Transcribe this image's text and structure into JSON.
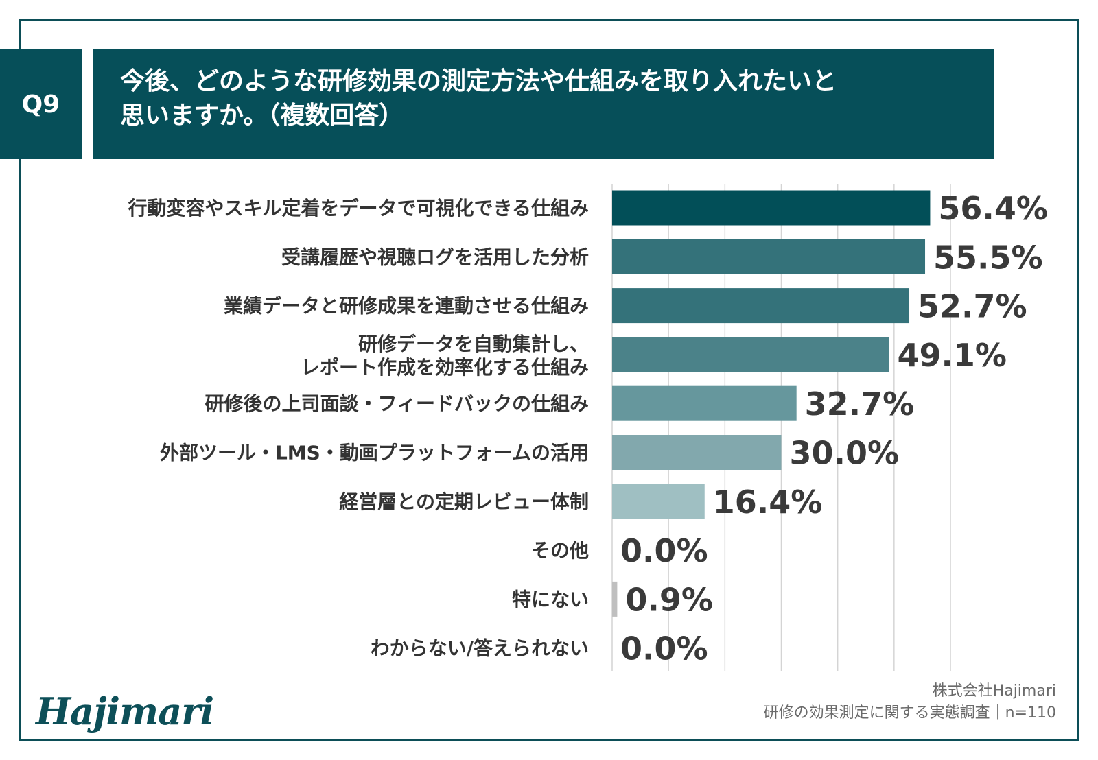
{
  "question": {
    "badge": "Q9",
    "title_line1": "今後、どのような研修効果の測定方法や仕組みを取り入れたいと",
    "title_line2": "思いますか。（複数回答）"
  },
  "chart_data": {
    "type": "bar",
    "orientation": "horizontal",
    "categories": [
      [
        "行動変容やスキル定着をデータで可視化できる仕組み"
      ],
      [
        "受講履歴や視聴ログを活用した分析"
      ],
      [
        "業績データと研修成果を連動させる仕組み"
      ],
      [
        "研修データを自動集計し、",
        "レポート作成を効率化する仕組み"
      ],
      [
        "研修後の上司面談・フィードバックの仕組み"
      ],
      [
        "外部ツール・LMS・動画プラットフォームの活用"
      ],
      [
        "経営層との定期レビュー体制"
      ],
      [
        "その他"
      ],
      [
        "特にない"
      ],
      [
        "わからない/答えられない"
      ]
    ],
    "values": [
      56.4,
      55.5,
      52.7,
      49.1,
      32.7,
      30.0,
      16.4,
      0.0,
      0.9,
      0.0
    ],
    "value_labels": [
      "56.4%",
      "55.5%",
      "52.7%",
      "49.1%",
      "32.7%",
      "30.0%",
      "16.4%",
      "0.0%",
      "0.9%",
      "0.0%"
    ],
    "bar_colors": [
      "#024f58",
      "#34727a",
      "#34727a",
      "#4b8289",
      "#66979d",
      "#82a8ad",
      "#9fbfc2",
      "#bfbfbf",
      "#bfbfbf",
      "#bfbfbf"
    ],
    "xlim": [
      0,
      60
    ],
    "grid": true,
    "grid_step": 10
  },
  "footer": {
    "logo": "Hajimari",
    "company": "株式会社Hajimari",
    "survey": "研修の効果測定に関する実態調査｜n=110"
  }
}
